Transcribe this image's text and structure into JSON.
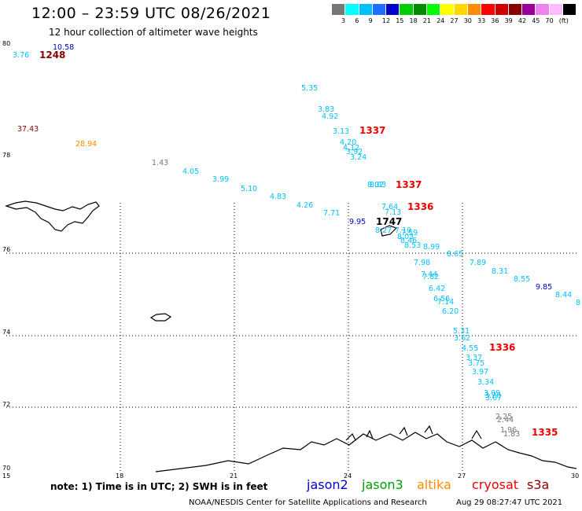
{
  "header": {
    "title": "12:00 – 23:59 UTC 08/26/2021",
    "subtitle": "12 hour collection of altimeter wave heights"
  },
  "legend": {
    "colors": [
      "#777777",
      "#00ffff",
      "#00bfff",
      "#1e6fff",
      "#0000cd",
      "#00cd00",
      "#008b00",
      "#00ff00",
      "#ffff00",
      "#ffd700",
      "#ff8c00",
      "#ff0000",
      "#cd0000",
      "#8b0000",
      "#9a0099",
      "#ee82ee",
      "#ffbbff",
      "#000000"
    ],
    "labels": [
      "3",
      "6",
      "9",
      "12",
      "15",
      "18",
      "21",
      "24",
      "27",
      "30",
      "33",
      "36",
      "39",
      "42",
      "45",
      "70",
      "(ft)"
    ]
  },
  "axes": {
    "lat_labels": [
      "80",
      "78",
      "76",
      "74",
      "72",
      "70"
    ],
    "lon_labels": [
      "15",
      "18",
      "21",
      "24",
      "27",
      "30"
    ]
  },
  "observations": [
    {
      "t": "3.76",
      "c": "#00bfff"
    },
    {
      "t": "10.58",
      "c": "#0000cd"
    },
    {
      "t": "1248",
      "c": "#8b0000",
      "big": true
    },
    {
      "t": "5.35",
      "c": "#00bfff"
    },
    {
      "t": "3.83",
      "c": "#00bfff"
    },
    {
      "t": "4.92",
      "c": "#00bfff"
    },
    {
      "t": "37.43",
      "c": "#8b0000"
    },
    {
      "t": "3.13",
      "c": "#00bfff"
    },
    {
      "t": "1337",
      "c": "#ee0000",
      "big": true
    },
    {
      "t": "4.20",
      "c": "#00bfff"
    },
    {
      "t": "4.12",
      "c": "#00bfff"
    },
    {
      "t": "3.92",
      "c": "#00bfff"
    },
    {
      "t": "3.24",
      "c": "#00bfff"
    },
    {
      "t": "28.94",
      "c": "#ff8c00"
    },
    {
      "t": "1.43",
      "c": "#777777"
    },
    {
      "t": "4.05",
      "c": "#00bfff"
    },
    {
      "t": "3.99",
      "c": "#00bfff"
    },
    {
      "t": "5.10",
      "c": "#00bfff"
    },
    {
      "t": "4.83",
      "c": "#00bfff"
    },
    {
      "t": "8.02",
      "c": "#00bfff"
    },
    {
      "t": "8.03",
      "c": "#00bfff"
    },
    {
      "t": "1337",
      "c": "#ee0000",
      "big": true
    },
    {
      "t": "4.26",
      "c": "#00bfff"
    },
    {
      "t": "7.71",
      "c": "#00bfff"
    },
    {
      "t": "7.64",
      "c": "#00bfff"
    },
    {
      "t": "7.13",
      "c": "#00bfff"
    },
    {
      "t": "1336",
      "c": "#ee0000",
      "big": true
    },
    {
      "t": "9.95",
      "c": "#0000cd"
    },
    {
      "t": "1747",
      "c": "#000000",
      "big": true
    },
    {
      "t": "8.27",
      "c": "#00bfff"
    },
    {
      "t": "7.10",
      "c": "#00bfff"
    },
    {
      "t": "7.59",
      "c": "#00bfff"
    },
    {
      "t": "8.03",
      "c": "#00bfff"
    },
    {
      "t": "8.46",
      "c": "#00bfff"
    },
    {
      "t": "8.53",
      "c": "#00bfff"
    },
    {
      "t": "8.99",
      "c": "#00bfff"
    },
    {
      "t": "8.65",
      "c": "#00bfff"
    },
    {
      "t": "7.89",
      "c": "#00bfff"
    },
    {
      "t": "7.98",
      "c": "#00bfff"
    },
    {
      "t": "8.31",
      "c": "#00bfff"
    },
    {
      "t": "7.44",
      "c": "#00bfff"
    },
    {
      "t": "7.82",
      "c": "#00bfff"
    },
    {
      "t": "8.55",
      "c": "#00bfff"
    },
    {
      "t": "9.85",
      "c": "#0000cd"
    },
    {
      "t": "6.42",
      "c": "#00bfff"
    },
    {
      "t": "8.44",
      "c": "#00bfff"
    },
    {
      "t": "6.56",
      "c": "#00bfff"
    },
    {
      "t": "7.14",
      "c": "#00bfff"
    },
    {
      "t": "8",
      "c": "#00bfff"
    },
    {
      "t": "6.20",
      "c": "#00bfff"
    },
    {
      "t": "5.31",
      "c": "#00bfff"
    },
    {
      "t": "3.62",
      "c": "#00bfff"
    },
    {
      "t": "4.55",
      "c": "#00bfff"
    },
    {
      "t": "1336",
      "c": "#ee0000",
      "big": true
    },
    {
      "t": "3.37",
      "c": "#00bfff"
    },
    {
      "t": "3.75",
      "c": "#00bfff"
    },
    {
      "t": "3.97",
      "c": "#00bfff"
    },
    {
      "t": "3.34",
      "c": "#00bfff"
    },
    {
      "t": "3.09",
      "c": "#00bfff"
    },
    {
      "t": "3.20",
      "c": "#00bfff"
    },
    {
      "t": "3.07",
      "c": "#00bfff"
    },
    {
      "t": "2.25",
      "c": "#777777"
    },
    {
      "t": "2.44",
      "c": "#777777"
    },
    {
      "t": "1.96",
      "c": "#777777"
    },
    {
      "t": "1.83",
      "c": "#777777"
    },
    {
      "t": "1335",
      "c": "#ee0000",
      "big": true
    }
  ],
  "footer": {
    "note": "note: 1) Time is in UTC; 2) SWH is in feet",
    "satellites": [
      {
        "name": "jason2",
        "color": "#0000cd"
      },
      {
        "name": "jason3",
        "color": "#00a000"
      },
      {
        "name": "altika",
        "color": "#ff8c00"
      },
      {
        "name": "cryosat",
        "color": "#ee0000"
      },
      {
        "name": "s3a",
        "color": "#8b0000"
      }
    ],
    "credit": "NOAA/NESDIS Center for Satellite Applications and Research",
    "timestamp": "Aug 29 08:27:47 UTC 2021"
  }
}
